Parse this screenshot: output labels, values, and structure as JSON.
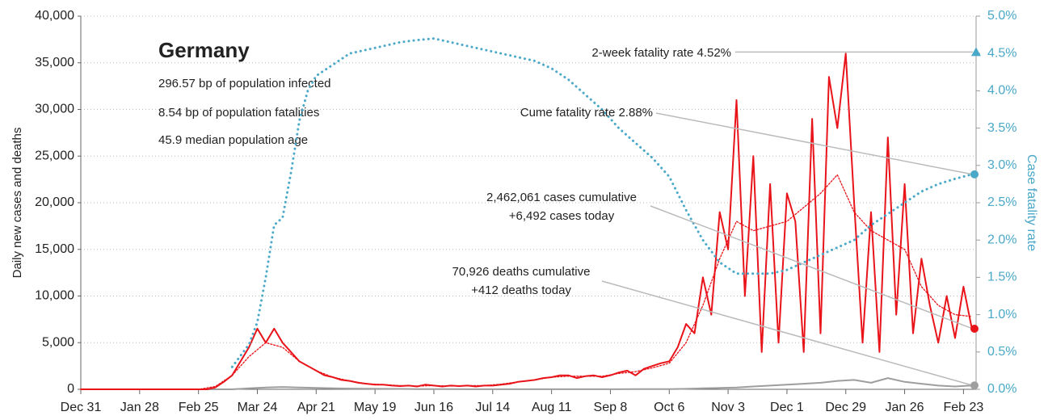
{
  "chart_data": {
    "type": "line",
    "title": "Germany",
    "subtitle_lines": [
      "296.57 bp of population infected",
      "8.54 bp of population fatalities",
      "45.9 median population age"
    ],
    "ylabel": "Daily new cases and deaths",
    "y2label": "Case fatality rate",
    "xlim": [
      0,
      426
    ],
    "xticks": [
      {
        "value": 0,
        "label": "Dec 31"
      },
      {
        "value": 28,
        "label": "Jan 28"
      },
      {
        "value": 56,
        "label": "Feb 25"
      },
      {
        "value": 84,
        "label": "Mar 24"
      },
      {
        "value": 112,
        "label": "Apr 21"
      },
      {
        "value": 140,
        "label": "May 19"
      },
      {
        "value": 168,
        "label": "Jun 16"
      },
      {
        "value": 196,
        "label": "Jul 14"
      },
      {
        "value": 224,
        "label": "Aug 11"
      },
      {
        "value": 252,
        "label": "Sep 8"
      },
      {
        "value": 280,
        "label": "Oct 6"
      },
      {
        "value": 308,
        "label": "Nov 3"
      },
      {
        "value": 336,
        "label": "Dec 1"
      },
      {
        "value": 364,
        "label": "Dec 29"
      },
      {
        "value": 392,
        "label": "Jan 26"
      },
      {
        "value": 420,
        "label": "Feb 23"
      }
    ],
    "ylim": [
      0,
      40000
    ],
    "yticks": [
      0,
      {
        "value": 5000,
        "label": "5,000"
      },
      {
        "value": 10000,
        "label": "10,000"
      },
      {
        "value": 15000,
        "label": "15,000"
      },
      {
        "value": 20000,
        "label": "20,000"
      },
      {
        "value": 25000,
        "label": "25,000"
      },
      {
        "value": 30000,
        "label": "30,000"
      },
      {
        "value": 35000,
        "label": "35,000"
      },
      {
        "value": 40000,
        "label": "40,000"
      }
    ],
    "y2lim": [
      0,
      5
    ],
    "y2ticks": [
      {
        "value": 0,
        "label": "0.0%"
      },
      {
        "value": 0.5,
        "label": "0.5%"
      },
      {
        "value": 1,
        "label": "1.0%"
      },
      {
        "value": 1.5,
        "label": "1.5%"
      },
      {
        "value": 2,
        "label": "2.0%"
      },
      {
        "value": 2.5,
        "label": "2.5%"
      },
      {
        "value": 3,
        "label": "3.0%"
      },
      {
        "value": 3.5,
        "label": "3.5%"
      },
      {
        "value": 4,
        "label": "4.0%"
      },
      {
        "value": 4.5,
        "label": "4.5%"
      },
      {
        "value": 5,
        "label": "5.0%"
      }
    ],
    "grid": true,
    "series": [
      {
        "color": "#9e9e9e",
        "style": "solid",
        "width": 2,
        "x": [
          0,
          8,
          16,
          24,
          32,
          40,
          48,
          56,
          64,
          72,
          80,
          88,
          96,
          104,
          112,
          120,
          128,
          136,
          144,
          152,
          160,
          168,
          176,
          184,
          192,
          200,
          208,
          216,
          224,
          232,
          240,
          248,
          256,
          264,
          272,
          280,
          288,
          296,
          304,
          312,
          320,
          328,
          336,
          344,
          352,
          360,
          368,
          376,
          384,
          392,
          400,
          408,
          416,
          424
        ],
        "values": [
          0,
          0,
          0,
          0,
          0,
          0,
          0,
          0,
          0,
          0,
          100,
          200,
          250,
          200,
          150,
          100,
          80,
          60,
          50,
          40,
          30,
          20,
          20,
          10,
          10,
          10,
          10,
          10,
          10,
          10,
          10,
          10,
          10,
          20,
          20,
          30,
          50,
          100,
          150,
          200,
          300,
          400,
          500,
          600,
          700,
          900,
          1000,
          700,
          1200,
          800,
          600,
          400,
          300,
          412
        ]
      },
      {
        "color": "#e8141a",
        "style": "solid",
        "width": 2,
        "x": [
          0,
          4,
          8,
          12,
          16,
          20,
          24,
          28,
          32,
          36,
          40,
          44,
          48,
          52,
          56,
          60,
          64,
          68,
          72,
          76,
          80,
          84,
          88,
          92,
          96,
          100,
          104,
          108,
          112,
          116,
          120,
          124,
          128,
          132,
          136,
          140,
          144,
          148,
          152,
          156,
          160,
          164,
          168,
          172,
          176,
          180,
          184,
          188,
          192,
          196,
          200,
          204,
          208,
          212,
          216,
          220,
          224,
          228,
          232,
          236,
          240,
          244,
          248,
          252,
          256,
          260,
          264,
          268,
          272,
          276,
          280,
          284,
          288,
          292,
          296,
          300,
          304,
          308,
          312,
          316,
          320,
          324,
          328,
          332,
          336,
          340,
          344,
          348,
          352,
          356,
          360,
          364,
          368,
          372,
          376,
          380,
          384,
          388,
          392,
          396,
          400,
          404,
          408,
          412,
          416,
          420,
          424
        ],
        "values": [
          0,
          0,
          0,
          0,
          0,
          0,
          0,
          0,
          0,
          0,
          0,
          0,
          0,
          0,
          0,
          0,
          200,
          800,
          1500,
          3000,
          4500,
          6500,
          5000,
          6500,
          5000,
          4000,
          3000,
          2500,
          2000,
          1500,
          1300,
          1000,
          900,
          700,
          600,
          500,
          500,
          400,
          350,
          400,
          300,
          500,
          400,
          300,
          400,
          350,
          400,
          300,
          400,
          400,
          500,
          600,
          800,
          900,
          1000,
          1200,
          1300,
          1500,
          1500,
          1200,
          1400,
          1500,
          1300,
          1500,
          1800,
          2000,
          1500,
          2200,
          2500,
          2800,
          3000,
          4500,
          7000,
          6000,
          12000,
          8000,
          19000,
          15000,
          31000,
          10000,
          25000,
          4000,
          22000,
          5000,
          21000,
          18000,
          4000,
          29000,
          6000,
          33500,
          28000,
          36000,
          20000,
          5000,
          19000,
          4000,
          27000,
          8000,
          22000,
          6000,
          14000,
          9000,
          5000,
          10000,
          5500,
          11000,
          6492
        ]
      },
      {
        "color": "#e8141a",
        "style": "dotted",
        "width": 1.3,
        "x": [
          0,
          8,
          16,
          24,
          32,
          40,
          48,
          56,
          64,
          72,
          80,
          88,
          96,
          104,
          112,
          120,
          128,
          136,
          144,
          152,
          160,
          168,
          176,
          184,
          192,
          200,
          208,
          216,
          224,
          232,
          240,
          248,
          256,
          264,
          272,
          280,
          288,
          296,
          304,
          312,
          320,
          328,
          336,
          344,
          352,
          360,
          368,
          376,
          384,
          392,
          400,
          408,
          416,
          424
        ],
        "values": [
          0,
          0,
          0,
          0,
          0,
          0,
          0,
          0,
          300,
          1500,
          3500,
          5000,
          4500,
          3000,
          2000,
          1300,
          900,
          600,
          500,
          400,
          350,
          400,
          350,
          400,
          400,
          550,
          800,
          1000,
          1300,
          1400,
          1400,
          1400,
          1700,
          1900,
          2300,
          2800,
          5000,
          9000,
          14000,
          18000,
          17000,
          17500,
          18000,
          19500,
          21000,
          23000,
          19000,
          17000,
          16000,
          15000,
          11000,
          9000,
          8000,
          7800
        ]
      },
      {
        "color": "#4aa8c8",
        "style": "dotted",
        "width": 3,
        "axis": "y2",
        "x": [
          72,
          80,
          84,
          88,
          92,
          96,
          100,
          104,
          108,
          112,
          120,
          128,
          136,
          144,
          152,
          160,
          168,
          176,
          184,
          192,
          200,
          208,
          216,
          224,
          232,
          240,
          248,
          256,
          264,
          272,
          280,
          288,
          296,
          304,
          312,
          320,
          328,
          336,
          344,
          352,
          360,
          368,
          376,
          384,
          392,
          400,
          408,
          416,
          424
        ],
        "values": [
          0.3,
          0.6,
          0.9,
          1.5,
          2.2,
          2.3,
          2.9,
          3.6,
          4.0,
          4.2,
          4.35,
          4.5,
          4.55,
          4.6,
          4.65,
          4.68,
          4.7,
          4.65,
          4.6,
          4.55,
          4.5,
          4.45,
          4.4,
          4.3,
          4.15,
          3.95,
          3.75,
          3.5,
          3.3,
          3.1,
          2.85,
          2.4,
          2.0,
          1.7,
          1.55,
          1.55,
          1.55,
          1.6,
          1.7,
          1.8,
          1.9,
          2.0,
          2.2,
          2.35,
          2.5,
          2.65,
          2.75,
          2.82,
          2.88
        ]
      }
    ],
    "annotations": [
      {
        "lines": [
          "2-week fatality rate 4.52%"
        ],
        "value": 4.52,
        "axis": "y2",
        "color": "#4aa8c8"
      },
      {
        "lines": [
          "Cume fatality rate 2.88%"
        ],
        "value": 2.88,
        "axis": "y2",
        "color": "#4aa8c8"
      },
      {
        "lines": [
          "2,462,061 cases cumulative",
          "+6,492 cases today"
        ],
        "value": 6492,
        "axis": "y",
        "color": "#e8141a"
      },
      {
        "lines": [
          "70,926 deaths cumulative",
          "+412 deaths today"
        ],
        "value": 412,
        "axis": "y",
        "color": "#9e9e9e"
      }
    ]
  }
}
